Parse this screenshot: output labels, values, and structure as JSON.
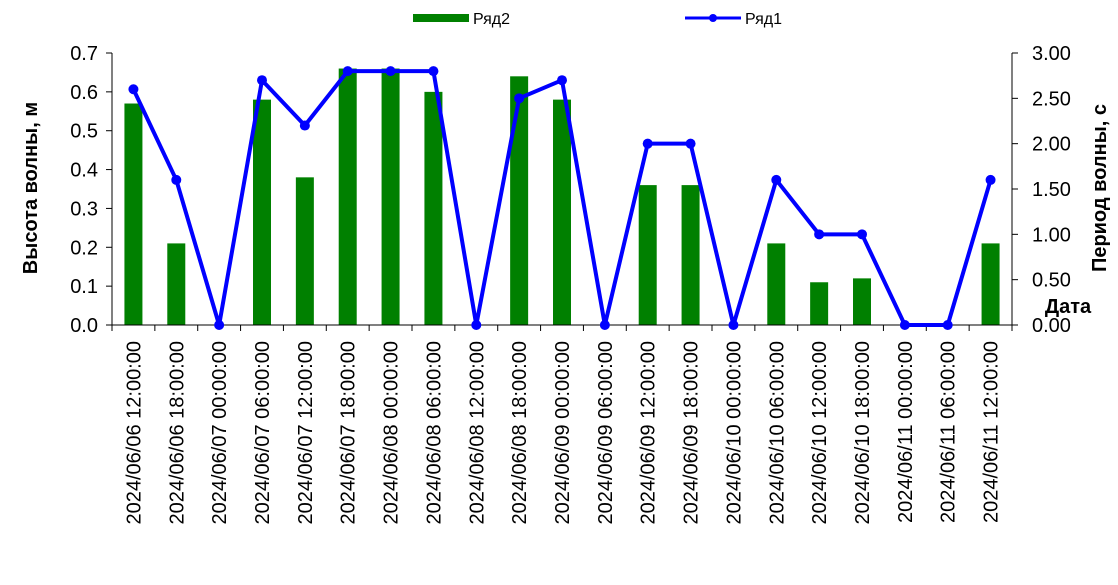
{
  "chart_data": {
    "type": "bar+line",
    "categories": [
      "2024/06/06 12:00:00",
      "2024/06/06 18:00:00",
      "2024/06/07 00:00:00",
      "2024/06/07 06:00:00",
      "2024/06/07 12:00:00",
      "2024/06/07 18:00:00",
      "2024/06/08 00:00:00",
      "2024/06/08 06:00:00",
      "2024/06/08 12:00:00",
      "2024/06/08 18:00:00",
      "2024/06/09 00:00:00",
      "2024/06/09 06:00:00",
      "2024/06/09 12:00:00",
      "2024/06/09 18:00:00",
      "2024/06/10 00:00:00",
      "2024/06/10 06:00:00",
      "2024/06/10 12:00:00",
      "2024/06/10 18:00:00",
      "2024/06/11 00:00:00",
      "2024/06/11 06:00:00",
      "2024/06/11 12:00:00"
    ],
    "series": [
      {
        "name": "Ряд2",
        "type": "bar",
        "axis": "left",
        "color": "#008000",
        "values": [
          0.57,
          0.21,
          0.0,
          0.58,
          0.38,
          0.66,
          0.66,
          0.6,
          0.0,
          0.64,
          0.58,
          0.0,
          0.36,
          0.36,
          0.0,
          0.21,
          0.11,
          0.12,
          0.0,
          0.0,
          0.21
        ]
      },
      {
        "name": "Ряд1",
        "type": "line",
        "axis": "right",
        "color": "#0000ff",
        "values": [
          2.6,
          1.6,
          0.0,
          2.7,
          2.2,
          2.8,
          2.8,
          2.8,
          0.0,
          2.5,
          2.7,
          0.0,
          2.0,
          2.0,
          0.0,
          1.6,
          1.0,
          1.0,
          0.0,
          0.0,
          1.6
        ]
      }
    ],
    "ylabel": "Высота волны, м",
    "ylabel_right": "Период волны, с",
    "xlabel": "Дата",
    "ylim": [
      0,
      0.7
    ],
    "ylim_right": [
      0,
      3.0
    ],
    "yticks": [
      "0.0",
      "0.1",
      "0.2",
      "0.3",
      "0.4",
      "0.5",
      "0.6",
      "0.7"
    ],
    "yticks_right": [
      "0.00",
      "0.50",
      "1.00",
      "1.50",
      "2.00",
      "2.50",
      "3.00"
    ],
    "grid": false,
    "legend_position": "top"
  }
}
